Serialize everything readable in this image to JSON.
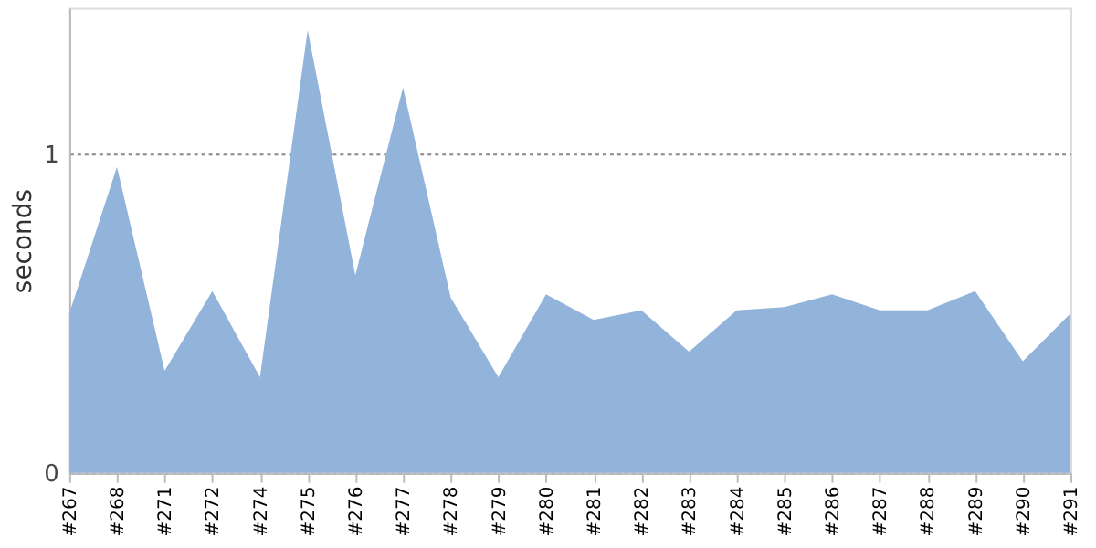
{
  "chart_data": {
    "type": "area",
    "ylabel": "seconds",
    "categories": [
      "#267",
      "#268",
      "#271",
      "#272",
      "#274",
      "#275",
      "#276",
      "#277",
      "#278",
      "#279",
      "#280",
      "#281",
      "#282",
      "#283",
      "#284",
      "#285",
      "#286",
      "#287",
      "#288",
      "#289",
      "#290",
      "#291"
    ],
    "series": [
      {
        "color": "#92b3da",
        "values": [
          0.5,
          0.96,
          0.32,
          0.57,
          0.3,
          1.39,
          0.62,
          1.21,
          0.55,
          0.3,
          0.56,
          0.48,
          0.51,
          0.38,
          0.51,
          0.52,
          0.56,
          0.51,
          0.51,
          0.57,
          0.35,
          0.5
        ]
      }
    ],
    "ylim": [
      0,
      1.46
    ],
    "yticks": [
      0,
      1
    ],
    "grid": "y",
    "line_style": "dotted",
    "legend": false
  }
}
